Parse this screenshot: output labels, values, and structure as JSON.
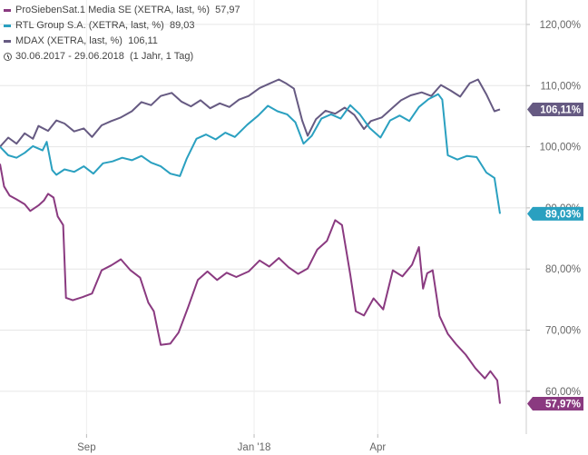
{
  "legend": {
    "series": [
      {
        "label": "ProSiebenSat.1 Media SE (XETRA, last, %)",
        "value": "57,97",
        "color": "#8a3a80"
      },
      {
        "label": "RTL Group S.A. (XETRA, last, %)",
        "value": "89,03",
        "color": "#2aa0c0"
      },
      {
        "label": "MDAX (XETRA, last, %)",
        "value": "106,11",
        "color": "#665a82"
      }
    ],
    "period": "30.06.2017 - 29.06.2018",
    "period_note": "(1 Jahr, 1 Tag)"
  },
  "chart_data": {
    "type": "line",
    "ylim": [
      53,
      124
    ],
    "yticks": [
      {
        "value": 60,
        "label": "60,00%"
      },
      {
        "value": 70,
        "label": "70,00%"
      },
      {
        "value": 80,
        "label": "80,00%"
      },
      {
        "value": 90,
        "label": "90,00%"
      },
      {
        "value": 100,
        "label": "100,00%"
      },
      {
        "value": 110,
        "label": "110,00%"
      },
      {
        "value": 120,
        "label": "120,00%"
      }
    ],
    "xticks": [
      {
        "date": "2017-09-01",
        "label": "Sep"
      },
      {
        "date": "2018-01-01",
        "label": "Jan '18"
      },
      {
        "date": "2018-04-01",
        "label": "Apr"
      }
    ],
    "xrange": [
      "2017-06-30",
      "2018-06-29"
    ],
    "series": [
      {
        "name": "MDAX",
        "color": "#665a82",
        "end_label": "106,11%",
        "points": [
          [
            "2017-06-30",
            100.0
          ],
          [
            "2017-07-06",
            101.5
          ],
          [
            "2017-07-12",
            100.5
          ],
          [
            "2017-07-18",
            102.2
          ],
          [
            "2017-07-24",
            101.3
          ],
          [
            "2017-07-28",
            103.4
          ],
          [
            "2017-08-04",
            102.6
          ],
          [
            "2017-08-10",
            104.3
          ],
          [
            "2017-08-16",
            103.8
          ],
          [
            "2017-08-23",
            102.5
          ],
          [
            "2017-08-30",
            103.0
          ],
          [
            "2017-09-05",
            101.6
          ],
          [
            "2017-09-12",
            103.5
          ],
          [
            "2017-09-19",
            104.2
          ],
          [
            "2017-09-26",
            104.8
          ],
          [
            "2017-10-04",
            105.8
          ],
          [
            "2017-10-11",
            107.3
          ],
          [
            "2017-10-18",
            106.8
          ],
          [
            "2017-10-25",
            108.3
          ],
          [
            "2017-11-02",
            108.8
          ],
          [
            "2017-11-09",
            107.4
          ],
          [
            "2017-11-16",
            106.6
          ],
          [
            "2017-11-23",
            107.6
          ],
          [
            "2017-11-30",
            106.3
          ],
          [
            "2017-12-07",
            107.1
          ],
          [
            "2017-12-14",
            106.5
          ],
          [
            "2017-12-21",
            107.7
          ],
          [
            "2017-12-28",
            108.3
          ],
          [
            "2018-01-05",
            109.6
          ],
          [
            "2018-01-12",
            110.3
          ],
          [
            "2018-01-19",
            111.0
          ],
          [
            "2018-01-24",
            110.4
          ],
          [
            "2018-01-30",
            109.5
          ],
          [
            "2018-02-05",
            104.3
          ],
          [
            "2018-02-09",
            101.8
          ],
          [
            "2018-02-15",
            104.5
          ],
          [
            "2018-02-22",
            105.9
          ],
          [
            "2018-03-01",
            105.4
          ],
          [
            "2018-03-08",
            106.4
          ],
          [
            "2018-03-15",
            105.2
          ],
          [
            "2018-03-22",
            102.9
          ],
          [
            "2018-03-27",
            104.2
          ],
          [
            "2018-04-04",
            104.8
          ],
          [
            "2018-04-11",
            106.2
          ],
          [
            "2018-04-18",
            107.6
          ],
          [
            "2018-04-25",
            108.4
          ],
          [
            "2018-05-03",
            108.9
          ],
          [
            "2018-05-10",
            108.3
          ],
          [
            "2018-05-17",
            110.1
          ],
          [
            "2018-05-24",
            109.2
          ],
          [
            "2018-05-31",
            108.2
          ],
          [
            "2018-06-07",
            110.4
          ],
          [
            "2018-06-13",
            111.0
          ],
          [
            "2018-06-19",
            108.6
          ],
          [
            "2018-06-25",
            105.8
          ],
          [
            "2018-06-29",
            106.11
          ]
        ]
      },
      {
        "name": "RTL Group",
        "color": "#2aa0c0",
        "end_label": "89,03%",
        "points": [
          [
            "2017-06-30",
            100.0
          ],
          [
            "2017-07-06",
            98.6
          ],
          [
            "2017-07-12",
            98.2
          ],
          [
            "2017-07-18",
            99.0
          ],
          [
            "2017-07-24",
            100.1
          ],
          [
            "2017-07-31",
            99.4
          ],
          [
            "2017-08-03",
            100.8
          ],
          [
            "2017-08-07",
            96.2
          ],
          [
            "2017-08-10",
            95.4
          ],
          [
            "2017-08-16",
            96.3
          ],
          [
            "2017-08-23",
            95.9
          ],
          [
            "2017-08-30",
            96.8
          ],
          [
            "2017-09-06",
            95.6
          ],
          [
            "2017-09-13",
            97.3
          ],
          [
            "2017-09-20",
            97.6
          ],
          [
            "2017-09-27",
            98.2
          ],
          [
            "2017-10-04",
            97.8
          ],
          [
            "2017-10-11",
            98.5
          ],
          [
            "2017-10-18",
            97.4
          ],
          [
            "2017-10-25",
            96.8
          ],
          [
            "2017-11-01",
            95.6
          ],
          [
            "2017-11-08",
            95.2
          ],
          [
            "2017-11-13",
            98.1
          ],
          [
            "2017-11-20",
            101.3
          ],
          [
            "2017-11-27",
            102.0
          ],
          [
            "2017-12-04",
            101.2
          ],
          [
            "2017-12-11",
            102.3
          ],
          [
            "2017-12-18",
            101.6
          ],
          [
            "2017-12-27",
            103.6
          ],
          [
            "2018-01-04",
            105.1
          ],
          [
            "2018-01-11",
            106.7
          ],
          [
            "2018-01-18",
            105.8
          ],
          [
            "2018-01-25",
            105.3
          ],
          [
            "2018-01-31",
            104.0
          ],
          [
            "2018-02-06",
            100.5
          ],
          [
            "2018-02-12",
            101.8
          ],
          [
            "2018-02-19",
            104.6
          ],
          [
            "2018-02-26",
            105.3
          ],
          [
            "2018-03-05",
            104.6
          ],
          [
            "2018-03-12",
            106.8
          ],
          [
            "2018-03-19",
            105.3
          ],
          [
            "2018-03-26",
            103.1
          ],
          [
            "2018-04-03",
            101.5
          ],
          [
            "2018-04-10",
            104.3
          ],
          [
            "2018-04-17",
            105.1
          ],
          [
            "2018-04-24",
            104.2
          ],
          [
            "2018-05-01",
            106.5
          ],
          [
            "2018-05-08",
            107.8
          ],
          [
            "2018-05-15",
            108.6
          ],
          [
            "2018-05-18",
            107.7
          ],
          [
            "2018-05-22",
            98.6
          ],
          [
            "2018-05-29",
            97.9
          ],
          [
            "2018-06-05",
            98.5
          ],
          [
            "2018-06-12",
            98.3
          ],
          [
            "2018-06-19",
            95.8
          ],
          [
            "2018-06-25",
            94.9
          ],
          [
            "2018-06-29",
            89.03
          ]
        ]
      },
      {
        "name": "ProSiebenSat.1",
        "color": "#8a3a80",
        "end_label": "57,97%",
        "points": [
          [
            "2017-06-30",
            97.2
          ],
          [
            "2017-07-03",
            93.5
          ],
          [
            "2017-07-07",
            92.0
          ],
          [
            "2017-07-12",
            91.4
          ],
          [
            "2017-07-18",
            90.6
          ],
          [
            "2017-07-22",
            89.5
          ],
          [
            "2017-07-28",
            90.4
          ],
          [
            "2017-08-01",
            91.2
          ],
          [
            "2017-08-04",
            92.3
          ],
          [
            "2017-08-08",
            91.7
          ],
          [
            "2017-08-11",
            88.6
          ],
          [
            "2017-08-15",
            87.2
          ],
          [
            "2017-08-17",
            75.3
          ],
          [
            "2017-08-22",
            74.9
          ],
          [
            "2017-08-29",
            75.4
          ],
          [
            "2017-09-05",
            76.0
          ],
          [
            "2017-09-12",
            79.8
          ],
          [
            "2017-09-19",
            80.6
          ],
          [
            "2017-09-26",
            81.6
          ],
          [
            "2017-10-03",
            79.8
          ],
          [
            "2017-10-10",
            78.6
          ],
          [
            "2017-10-16",
            74.5
          ],
          [
            "2017-10-20",
            73.1
          ],
          [
            "2017-10-25",
            67.6
          ],
          [
            "2017-11-01",
            67.8
          ],
          [
            "2017-11-07",
            69.6
          ],
          [
            "2017-11-14",
            73.8
          ],
          [
            "2017-11-21",
            78.2
          ],
          [
            "2017-11-28",
            79.6
          ],
          [
            "2017-12-05",
            78.2
          ],
          [
            "2017-12-12",
            79.4
          ],
          [
            "2017-12-19",
            78.7
          ],
          [
            "2017-12-28",
            79.6
          ],
          [
            "2018-01-05",
            81.4
          ],
          [
            "2018-01-12",
            80.4
          ],
          [
            "2018-01-19",
            81.8
          ],
          [
            "2018-01-26",
            80.3
          ],
          [
            "2018-02-02",
            79.2
          ],
          [
            "2018-02-09",
            80.1
          ],
          [
            "2018-02-16",
            83.2
          ],
          [
            "2018-02-23",
            84.6
          ],
          [
            "2018-03-01",
            88.0
          ],
          [
            "2018-03-06",
            87.2
          ],
          [
            "2018-03-12",
            79.1
          ],
          [
            "2018-03-16",
            73.1
          ],
          [
            "2018-03-22",
            72.4
          ],
          [
            "2018-03-29",
            75.2
          ],
          [
            "2018-04-05",
            73.4
          ],
          [
            "2018-04-12",
            79.8
          ],
          [
            "2018-04-19",
            78.8
          ],
          [
            "2018-04-26",
            80.7
          ],
          [
            "2018-05-01",
            83.6
          ],
          [
            "2018-05-04",
            76.8
          ],
          [
            "2018-05-07",
            79.3
          ],
          [
            "2018-05-11",
            79.8
          ],
          [
            "2018-05-16",
            72.3
          ],
          [
            "2018-05-22",
            69.4
          ],
          [
            "2018-05-28",
            67.7
          ],
          [
            "2018-06-04",
            66.0
          ],
          [
            "2018-06-11",
            63.8
          ],
          [
            "2018-06-18",
            62.1
          ],
          [
            "2018-06-22",
            63.3
          ],
          [
            "2018-06-27",
            61.8
          ],
          [
            "2018-06-29",
            57.97
          ]
        ]
      }
    ]
  }
}
